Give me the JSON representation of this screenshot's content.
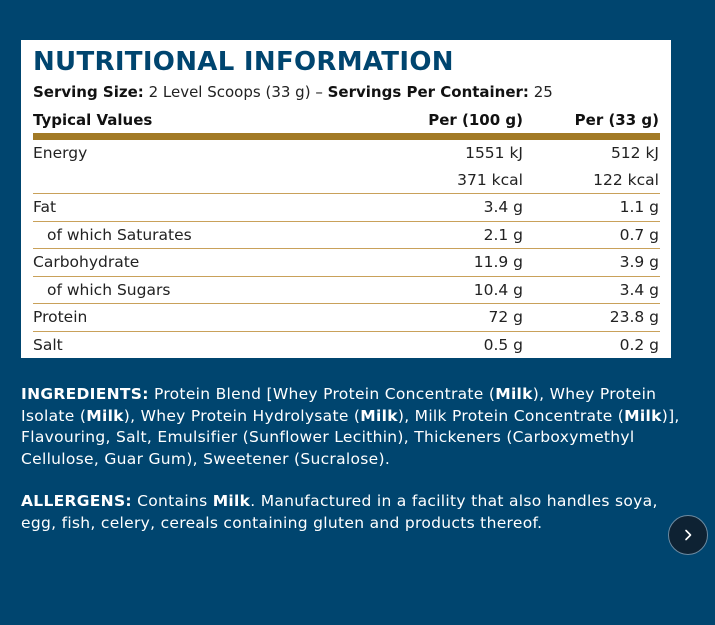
{
  "nutrition": {
    "title": "NUTRITIONAL INFORMATION",
    "serving_size_label": "Serving Size:",
    "serving_size_value": "2 Level Scoops (33 g)",
    "separator": "–",
    "servings_per_container_label": "Servings Per Container:",
    "servings_per_container_value": "25",
    "headers": [
      "Typical Values",
      "Per (100 g)",
      "Per (33 g)"
    ],
    "rows": [
      {
        "name": "Energy",
        "per100": "1551 kJ",
        "perServing": "512 kJ",
        "indent": false
      },
      {
        "name": "",
        "per100": "371 kcal",
        "perServing": "122 kcal",
        "indent": false
      },
      {
        "name": "Fat",
        "per100": "3.4 g",
        "perServing": "1.1 g",
        "indent": false
      },
      {
        "name": "of which Saturates",
        "per100": "2.1 g",
        "perServing": "0.7 g",
        "indent": true
      },
      {
        "name": "Carbohydrate",
        "per100": "11.9 g",
        "perServing": "3.9 g",
        "indent": false
      },
      {
        "name": "of which Sugars",
        "per100": "10.4 g",
        "perServing": "3.4 g",
        "indent": true
      },
      {
        "name": "Protein",
        "per100": "72 g",
        "perServing": "23.8 g",
        "indent": false
      },
      {
        "name": "Salt",
        "per100": "0.5 g",
        "perServing": "0.2 g",
        "indent": false
      }
    ]
  },
  "ingredients": {
    "label": "INGREDIENTS:",
    "segments": [
      {
        "text": " Protein Blend [Whey Protein Concentrate (",
        "bold": false
      },
      {
        "text": "Milk",
        "bold": true
      },
      {
        "text": "), Whey Protein Isolate (",
        "bold": false
      },
      {
        "text": "Milk",
        "bold": true
      },
      {
        "text": "), Whey Protein Hydrolysate (",
        "bold": false
      },
      {
        "text": "Milk",
        "bold": true
      },
      {
        "text": "), Milk Protein Concentrate (",
        "bold": false
      },
      {
        "text": "Milk",
        "bold": true
      },
      {
        "text": ")], Flavouring, Salt, Emulsifier (Sunflower Lecithin), Thickeners (Carboxymethyl Cellulose, Guar Gum), Sweetener (Sucralose).",
        "bold": false
      }
    ]
  },
  "allergens": {
    "label": "ALLERGENS:",
    "segments": [
      {
        "text": " Contains ",
        "bold": false
      },
      {
        "text": "Milk",
        "bold": true
      },
      {
        "text": ". Manufactured in a facility that also handles soya, egg, fish, celery, cereals containing gluten and products thereof.",
        "bold": false
      }
    ]
  },
  "navigation": {
    "next_icon": "chevron-right-icon"
  },
  "colors": {
    "background": "#00456f",
    "title": "#00456f",
    "rule_gold": "#a27a26",
    "row_line": "#c9a15a"
  }
}
